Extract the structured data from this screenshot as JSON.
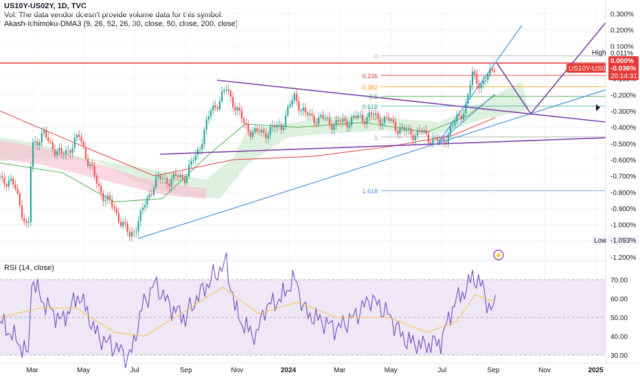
{
  "header": {
    "symbol_line": "US10Y-US02Y, 1D, TVC",
    "volume_note": "Vol: The data vendor doesn't provide volume data for this symbol.",
    "indicator_line": "Akash-Ichimoku-DMA3 (9, 26, 52, 26, 30, close, 50, close, 200, close)",
    "percent_button": "%"
  },
  "rsi_panel": {
    "title": "RSI (14, close)"
  },
  "colors": {
    "price_up": "#26a69a",
    "price_down": "#ef5350",
    "ma50": "#4caf50",
    "ma200": "#e53935",
    "trendline_purple": "#7b3fa8",
    "trendline_blue": "#4a90e2",
    "rsi_line": "#7e57c2",
    "rsi_ma": "#f5c542",
    "rsi_band": "#ede7f6"
  },
  "chart_data": [
    {
      "type": "candlestick",
      "title": "US10Y-US02Y, 1D, TVC",
      "ylim": [
        -1.2,
        0.3
      ],
      "y_ticks": [
        "0.300%",
        "0.200%",
        "0.100%",
        "0.000%",
        "-0.100%",
        "-0.200%",
        "-0.300%",
        "-0.400%",
        "-0.500%",
        "-0.600%",
        "-0.700%",
        "-0.800%",
        "-0.900%",
        "-1.000%",
        "-1.100%",
        "-1.200%"
      ],
      "x_ticks": [
        "Mar",
        "May",
        "Jul",
        "Sep",
        "Nov",
        "2024",
        "Mar",
        "May",
        "Jul",
        "Sep",
        "Nov",
        "2025"
      ],
      "x_range": [
        "2023-02-01",
        "2025-01-10"
      ],
      "series": [
        {
          "name": "US10Y-US02Y",
          "points": [
            [
              "2023-02-01",
              -0.7
            ],
            [
              "2023-02-20",
              -0.78
            ],
            [
              "2023-03-06",
              -1.07
            ],
            [
              "2023-03-10",
              -0.5
            ],
            [
              "2023-03-24",
              -0.45
            ],
            [
              "2023-04-14",
              -0.58
            ],
            [
              "2023-05-05",
              -0.46
            ],
            [
              "2023-05-26",
              -0.76
            ],
            [
              "2023-06-20",
              -0.95
            ],
            [
              "2023-07-03",
              -1.08
            ],
            [
              "2023-07-17",
              -0.93
            ],
            [
              "2023-08-01",
              -0.73
            ],
            [
              "2023-08-21",
              -0.72
            ],
            [
              "2023-09-06",
              -0.7
            ],
            [
              "2023-09-19",
              -0.57
            ],
            [
              "2023-10-06",
              -0.3
            ],
            [
              "2023-10-24",
              -0.17
            ],
            [
              "2023-11-03",
              -0.26
            ],
            [
              "2023-11-14",
              -0.39
            ],
            [
              "2023-11-28",
              -0.44
            ],
            [
              "2023-12-08",
              -0.43
            ],
            [
              "2023-12-27",
              -0.39
            ],
            [
              "2024-01-12",
              -0.21
            ],
            [
              "2024-01-25",
              -0.33
            ],
            [
              "2024-02-13",
              -0.35
            ],
            [
              "2024-03-01",
              -0.38
            ],
            [
              "2024-03-21",
              -0.35
            ],
            [
              "2024-04-10",
              -0.33
            ],
            [
              "2024-04-30",
              -0.36
            ],
            [
              "2024-05-20",
              -0.43
            ],
            [
              "2024-06-10",
              -0.44
            ],
            [
              "2024-07-01",
              -0.5
            ],
            [
              "2024-07-17",
              -0.38
            ],
            [
              "2024-07-31",
              -0.26
            ],
            [
              "2024-08-07",
              -0.08
            ],
            [
              "2024-08-19",
              -0.14
            ],
            [
              "2024-08-29",
              -0.06
            ],
            [
              "2024-09-03",
              0.0
            ]
          ]
        },
        {
          "name": "MA 50",
          "points": [
            [
              "2023-02-01",
              -0.62
            ],
            [
              "2023-04-15",
              -0.68
            ],
            [
              "2023-06-15",
              -0.86
            ],
            [
              "2023-08-10",
              -0.84
            ],
            [
              "2023-10-01",
              -0.58
            ],
            [
              "2023-11-15",
              -0.38
            ],
            [
              "2024-01-15",
              -0.4
            ],
            [
              "2024-04-01",
              -0.37
            ],
            [
              "2024-06-15",
              -0.43
            ],
            [
              "2024-08-01",
              -0.33
            ],
            [
              "2024-09-03",
              -0.2
            ]
          ]
        },
        {
          "name": "MA 200",
          "points": [
            [
              "2023-02-01",
              -0.3
            ],
            [
              "2023-05-01",
              -0.5
            ],
            [
              "2023-08-01",
              -0.7
            ],
            [
              "2023-11-01",
              -0.6
            ],
            [
              "2024-02-01",
              -0.58
            ],
            [
              "2024-05-01",
              -0.52
            ],
            [
              "2024-07-15",
              -0.45
            ],
            [
              "2024-09-03",
              -0.34
            ]
          ]
        }
      ],
      "annotations": {
        "high_label": "High",
        "high_value": "0.011%",
        "low_label": "Low",
        "low_value": "-1.093%",
        "current_value": "0.000%",
        "symbol_tag": "US10Y-US02Y",
        "symbol_tag_value": "-0.036%",
        "countdown": "20:14:31",
        "fib_levels": [
          {
            "label": "0",
            "value": 0.04
          },
          {
            "label": "0.236",
            "value": -0.08
          },
          {
            "label": "0.382",
            "value": -0.15
          },
          {
            "label": "0.5",
            "value": -0.21
          },
          {
            "label": "0.618",
            "value": -0.27
          },
          {
            "label": "1",
            "value": -0.46
          },
          {
            "label": "1.618",
            "value": -0.79
          }
        ]
      }
    },
    {
      "type": "line",
      "title": "RSI (14, close)",
      "ylim": [
        27,
        82
      ],
      "y_ticks": [
        "70.00",
        "60.00",
        "50.00",
        "40.00",
        "30.00"
      ],
      "bands": [
        30,
        70
      ],
      "series": [
        {
          "name": "RSI",
          "points": [
            [
              "2023-02-01",
              48
            ],
            [
              "2023-02-20",
              38
            ],
            [
              "2023-03-06",
              30
            ],
            [
              "2023-03-10",
              70
            ],
            [
              "2023-03-24",
              58
            ],
            [
              "2023-04-14",
              48
            ],
            [
              "2023-05-05",
              62
            ],
            [
              "2023-05-26",
              40
            ],
            [
              "2023-06-20",
              33
            ],
            [
              "2023-07-03",
              28
            ],
            [
              "2023-07-17",
              55
            ],
            [
              "2023-08-01",
              68
            ],
            [
              "2023-08-21",
              55
            ],
            [
              "2023-09-06",
              50
            ],
            [
              "2023-09-19",
              60
            ],
            [
              "2023-10-06",
              70
            ],
            [
              "2023-10-24",
              79
            ],
            [
              "2023-11-03",
              55
            ],
            [
              "2023-11-14",
              45
            ],
            [
              "2023-11-28",
              40
            ],
            [
              "2023-12-08",
              55
            ],
            [
              "2023-12-27",
              60
            ],
            [
              "2024-01-12",
              71
            ],
            [
              "2024-01-25",
              52
            ],
            [
              "2024-02-13",
              48
            ],
            [
              "2024-03-01",
              44
            ],
            [
              "2024-03-21",
              50
            ],
            [
              "2024-04-10",
              60
            ],
            [
              "2024-04-30",
              52
            ],
            [
              "2024-05-20",
              38
            ],
            [
              "2024-06-10",
              35
            ],
            [
              "2024-07-01",
              37
            ],
            [
              "2024-07-17",
              58
            ],
            [
              "2024-07-31",
              65
            ],
            [
              "2024-08-07",
              72
            ],
            [
              "2024-08-19",
              66
            ],
            [
              "2024-08-29",
              52
            ],
            [
              "2024-09-03",
              62
            ]
          ]
        },
        {
          "name": "RSI MA",
          "points": [
            [
              "2023-02-01",
              50
            ],
            [
              "2023-03-20",
              55
            ],
            [
              "2023-05-01",
              55
            ],
            [
              "2023-06-15",
              42
            ],
            [
              "2023-07-20",
              40
            ],
            [
              "2023-09-01",
              52
            ],
            [
              "2023-10-20",
              66
            ],
            [
              "2023-12-01",
              52
            ],
            [
              "2024-01-15",
              58
            ],
            [
              "2024-03-01",
              50
            ],
            [
              "2024-05-01",
              50
            ],
            [
              "2024-06-15",
              42
            ],
            [
              "2024-07-20",
              48
            ],
            [
              "2024-08-10",
              62
            ],
            [
              "2024-09-03",
              58
            ]
          ]
        }
      ]
    }
  ]
}
